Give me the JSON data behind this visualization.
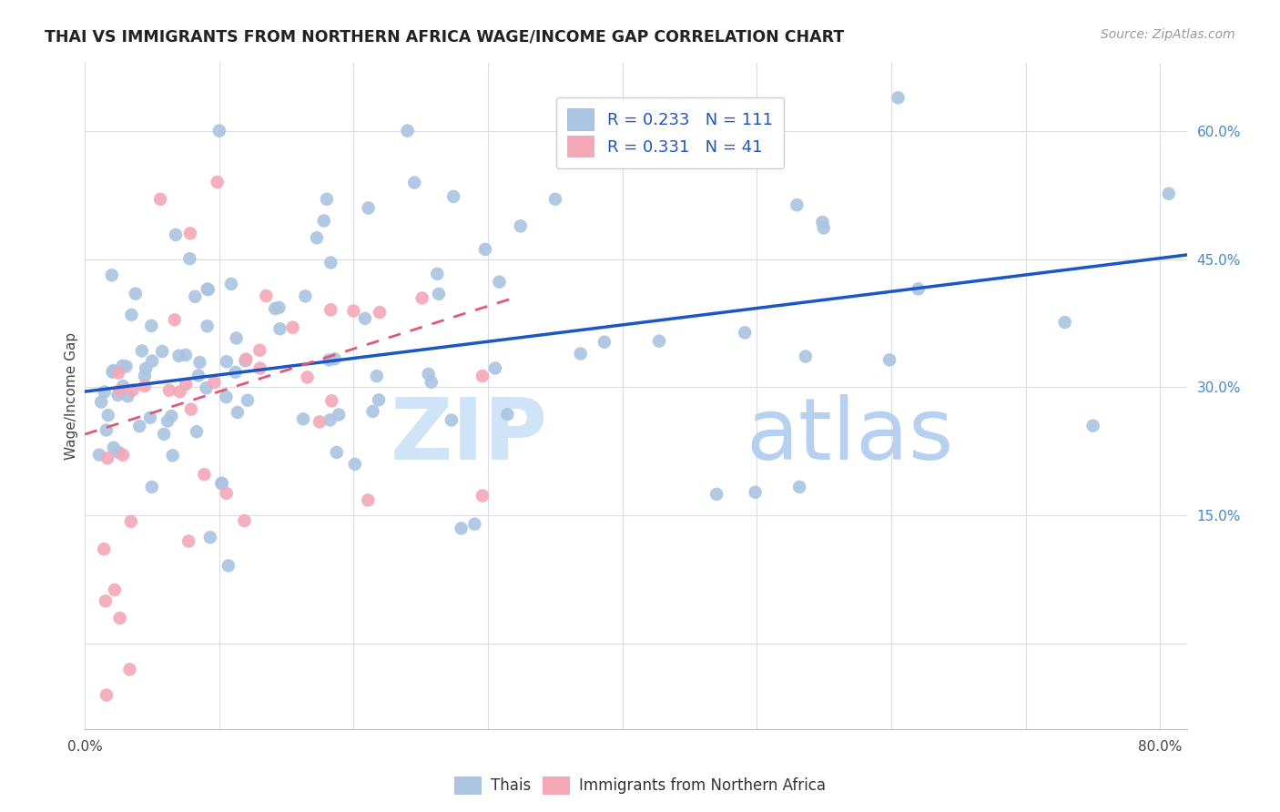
{
  "title": "THAI VS IMMIGRANTS FROM NORTHERN AFRICA WAGE/INCOME GAP CORRELATION CHART",
  "source": "Source: ZipAtlas.com",
  "ylabel": "Wage/Income Gap",
  "xlim": [
    0.0,
    0.82
  ],
  "ylim": [
    -0.1,
    0.68
  ],
  "R_thai": 0.233,
  "N_thai": 111,
  "R_africa": 0.331,
  "N_africa": 41,
  "thai_color": "#aac4e2",
  "africa_color": "#f4a8b8",
  "thai_line_color": "#1a56c4",
  "africa_line_color": "#e05878",
  "background_color": "#ffffff",
  "grid_color": "#dcdce8",
  "watermark_zip_color": "#d0e4f8",
  "watermark_atlas_color": "#b8d0f0",
  "right_tick_color": "#4488cc",
  "title_color": "#222222",
  "source_color": "#999999",
  "thai_line_intercept": 0.295,
  "thai_line_slope": 0.195,
  "africa_line_intercept": 0.245,
  "africa_line_slope": 0.5
}
